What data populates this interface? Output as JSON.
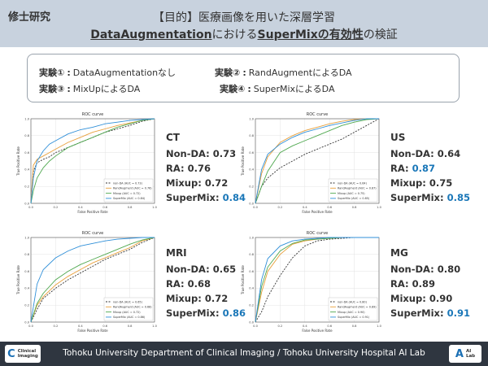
{
  "header": {
    "section_tag": "修士研究",
    "title_line1": "【目的】医療画像を用いた深層学習",
    "title_line2_part1": "DataAugmentation",
    "title_line2_part2": "における",
    "title_line2_part3": "SuperMixの有効性",
    "title_line2_part4": "の検証",
    "bg_color": "#c8d2de"
  },
  "experiments": [
    {
      "num": "実験①",
      "sep": ":",
      "text": "DataAugmentationなし"
    },
    {
      "num": "実験②",
      "sep": ":",
      "text": "RandAugmentによるDA"
    },
    {
      "num": "実験③",
      "sep": ":",
      "text": "MixUpによるDA"
    },
    {
      "num": "実験④",
      "sep": ":",
      "text": "SuperMixによるDA"
    }
  ],
  "results": [
    {
      "modality": "CT",
      "lines": [
        {
          "label": "Non-DA: ",
          "value": "0.73"
        },
        {
          "label": "RA: ",
          "value": "0.76"
        },
        {
          "label": "Mixup: ",
          "value": "0.72"
        },
        {
          "label": "SuperMix: ",
          "value": "0.84"
        }
      ]
    },
    {
      "modality": "US",
      "lines": [
        {
          "label": "Non-DA: ",
          "value": "0.64"
        },
        {
          "label": "RA: ",
          "value": "0.87"
        },
        {
          "label": "Mixup: ",
          "value": "0.75"
        },
        {
          "label": "SuperMix: ",
          "value": "0.85"
        }
      ]
    },
    {
      "modality": "MRI",
      "lines": [
        {
          "label": "Non-DA: ",
          "value": "0.65"
        },
        {
          "label": "RA: ",
          "value": "0.68"
        },
        {
          "label": "Mixup: ",
          "value": "0.72"
        },
        {
          "label": "SuperMix: ",
          "value": "0.86"
        }
      ]
    },
    {
      "modality": "MG",
      "lines": [
        {
          "label": "Non-DA: ",
          "value": "0.80"
        },
        {
          "label": "RA: ",
          "value": "0.89"
        },
        {
          "label": "Mixup: ",
          "value": "0.90"
        },
        {
          "label": "SuperMix: ",
          "value": "0.91"
        }
      ]
    }
  ],
  "highlight_color": "#1a77b8",
  "chart_data": [
    {
      "type": "line",
      "title": "ROC curve",
      "xlabel": "False Positive Rate",
      "ylabel": "True Positive Rate",
      "xlim": [
        0,
        1
      ],
      "ylim": [
        0,
        1
      ],
      "x_ticks": [
        "0.0",
        "0.2",
        "0.4",
        "0.6",
        "0.8",
        "1.0"
      ],
      "y_ticks": [
        "0.0",
        "0.2",
        "0.4",
        "0.6",
        "0.8",
        "1.0"
      ],
      "legend_position": "lower-right",
      "series": [
        {
          "name": "non-DA (AUC = 0.73)",
          "color": "#333333",
          "dash": true,
          "x": [
            0,
            0.02,
            0.05,
            0.1,
            0.15,
            0.2,
            0.3,
            0.4,
            0.5,
            0.6,
            0.7,
            0.8,
            0.9,
            1.0
          ],
          "y": [
            0,
            0.38,
            0.48,
            0.52,
            0.55,
            0.6,
            0.66,
            0.72,
            0.78,
            0.84,
            0.88,
            0.92,
            0.97,
            1.0
          ]
        },
        {
          "name": "RandAugment (AUC = 0.76)",
          "color": "#e8a03c",
          "x": [
            0,
            0.02,
            0.05,
            0.1,
            0.15,
            0.2,
            0.3,
            0.4,
            0.5,
            0.6,
            0.7,
            0.8,
            0.9,
            1.0
          ],
          "y": [
            0,
            0.45,
            0.52,
            0.56,
            0.6,
            0.64,
            0.72,
            0.78,
            0.84,
            0.88,
            0.92,
            0.95,
            0.98,
            1.0
          ]
        },
        {
          "name": "Mixup (AUC = 0.72)",
          "color": "#4fa84f",
          "x": [
            0,
            0.02,
            0.05,
            0.1,
            0.15,
            0.2,
            0.3,
            0.4,
            0.5,
            0.6,
            0.7,
            0.8,
            0.9,
            1.0
          ],
          "y": [
            0,
            0.15,
            0.3,
            0.42,
            0.5,
            0.56,
            0.66,
            0.72,
            0.78,
            0.84,
            0.9,
            0.94,
            0.98,
            1.0
          ]
        },
        {
          "name": "SuperMix (AUC = 0.84)",
          "color": "#2f8fd8",
          "x": [
            0,
            0.02,
            0.05,
            0.1,
            0.15,
            0.2,
            0.3,
            0.4,
            0.5,
            0.6,
            0.7,
            0.8,
            0.9,
            1.0
          ],
          "y": [
            0,
            0.3,
            0.5,
            0.62,
            0.7,
            0.74,
            0.82,
            0.87,
            0.9,
            0.94,
            0.96,
            0.98,
            0.99,
            1.0
          ]
        }
      ]
    },
    {
      "type": "line",
      "title": "ROC curve",
      "xlabel": "False Positive Rate",
      "ylabel": "True Positive Rate",
      "xlim": [
        0,
        1
      ],
      "ylim": [
        0,
        1
      ],
      "x_ticks": [
        "0.0",
        "0.2",
        "0.4",
        "0.6",
        "0.8",
        "1.0"
      ],
      "y_ticks": [
        "0.0",
        "0.2",
        "0.4",
        "0.6",
        "0.8",
        "1.0"
      ],
      "legend_position": "lower-right",
      "series": [
        {
          "name": "non-DA (AUC = 0.64)",
          "color": "#333333",
          "dash": true,
          "x": [
            0,
            0.05,
            0.1,
            0.2,
            0.3,
            0.4,
            0.5,
            0.6,
            0.7,
            0.8,
            0.9,
            1.0
          ],
          "y": [
            0,
            0.2,
            0.3,
            0.42,
            0.5,
            0.58,
            0.64,
            0.7,
            0.76,
            0.84,
            0.92,
            1.0
          ]
        },
        {
          "name": "RandAugment (AUC = 0.87)",
          "color": "#e8a03c",
          "x": [
            0,
            0.05,
            0.1,
            0.2,
            0.3,
            0.4,
            0.5,
            0.6,
            0.7,
            0.8,
            0.9,
            1.0
          ],
          "y": [
            0,
            0.35,
            0.55,
            0.72,
            0.8,
            0.86,
            0.9,
            0.94,
            0.97,
            0.99,
            1.0,
            1.0
          ]
        },
        {
          "name": "Mixup (AUC = 0.75)",
          "color": "#4fa84f",
          "x": [
            0,
            0.05,
            0.1,
            0.2,
            0.3,
            0.4,
            0.5,
            0.6,
            0.7,
            0.8,
            0.9,
            1.0
          ],
          "y": [
            0,
            0.2,
            0.38,
            0.6,
            0.68,
            0.74,
            0.8,
            0.86,
            0.92,
            0.96,
            0.99,
            1.0
          ]
        },
        {
          "name": "SuperMix (AUC = 0.85)",
          "color": "#2f8fd8",
          "x": [
            0,
            0.05,
            0.1,
            0.2,
            0.3,
            0.4,
            0.5,
            0.6,
            0.7,
            0.8,
            0.9,
            1.0
          ],
          "y": [
            0,
            0.4,
            0.58,
            0.7,
            0.78,
            0.84,
            0.88,
            0.92,
            0.95,
            0.98,
            1.0,
            1.0
          ]
        }
      ]
    },
    {
      "type": "line",
      "title": "ROC curve",
      "xlabel": "False Positive Rate",
      "ylabel": "True Positive Rate",
      "xlim": [
        0,
        1
      ],
      "ylim": [
        0,
        1
      ],
      "x_ticks": [
        "0.0",
        "0.2",
        "0.4",
        "0.6",
        "0.8",
        "1.0"
      ],
      "y_ticks": [
        "0.0",
        "0.2",
        "0.4",
        "0.6",
        "0.8",
        "1.0"
      ],
      "legend_position": "lower-right",
      "series": [
        {
          "name": "non-DA (AUC = 0.65)",
          "color": "#333333",
          "dash": true,
          "x": [
            0,
            0.05,
            0.1,
            0.2,
            0.3,
            0.4,
            0.5,
            0.6,
            0.7,
            0.8,
            0.9,
            1.0
          ],
          "y": [
            0,
            0.15,
            0.28,
            0.4,
            0.5,
            0.58,
            0.66,
            0.74,
            0.8,
            0.86,
            0.94,
            1.0
          ]
        },
        {
          "name": "RandAugment (AUC = 0.68)",
          "color": "#e8a03c",
          "x": [
            0,
            0.05,
            0.1,
            0.2,
            0.3,
            0.4,
            0.5,
            0.6,
            0.7,
            0.8,
            0.9,
            1.0
          ],
          "y": [
            0,
            0.2,
            0.3,
            0.44,
            0.54,
            0.62,
            0.7,
            0.76,
            0.82,
            0.88,
            0.96,
            1.0
          ]
        },
        {
          "name": "Mixup (AUC = 0.72)",
          "color": "#4fa84f",
          "x": [
            0,
            0.05,
            0.1,
            0.2,
            0.3,
            0.4,
            0.5,
            0.6,
            0.7,
            0.8,
            0.9,
            1.0
          ],
          "y": [
            0,
            0.22,
            0.34,
            0.5,
            0.6,
            0.68,
            0.74,
            0.8,
            0.86,
            0.92,
            0.97,
            1.0
          ]
        },
        {
          "name": "SuperMix (AUC = 0.86)",
          "color": "#2f8fd8",
          "x": [
            0,
            0.05,
            0.1,
            0.2,
            0.3,
            0.4,
            0.5,
            0.6,
            0.7,
            0.8,
            0.9,
            1.0
          ],
          "y": [
            0,
            0.45,
            0.62,
            0.76,
            0.84,
            0.9,
            0.93,
            0.96,
            0.98,
            0.99,
            1.0,
            1.0
          ]
        }
      ]
    },
    {
      "type": "line",
      "title": "ROC curve",
      "xlabel": "False Positive Rate",
      "ylabel": "True Positive Rate",
      "xlim": [
        0,
        1
      ],
      "ylim": [
        0,
        1
      ],
      "x_ticks": [
        "0.0",
        "0.2",
        "0.4",
        "0.6",
        "0.8",
        "1.0"
      ],
      "y_ticks": [
        "0.0",
        "0.2",
        "0.4",
        "0.6",
        "0.8",
        "1.0"
      ],
      "legend_position": "lower-right",
      "series": [
        {
          "name": "non-DA (AUC = 0.80)",
          "color": "#333333",
          "dash": true,
          "x": [
            0,
            0.05,
            0.1,
            0.2,
            0.3,
            0.4,
            0.5,
            0.6,
            0.7,
            0.8,
            0.9,
            1.0
          ],
          "y": [
            0,
            0.12,
            0.3,
            0.55,
            0.76,
            0.9,
            0.96,
            0.98,
            0.99,
            1.0,
            1.0,
            1.0
          ]
        },
        {
          "name": "RandAugment (AUC = 0.89)",
          "color": "#e8a03c",
          "x": [
            0,
            0.05,
            0.1,
            0.2,
            0.3,
            0.4,
            0.5,
            0.6,
            0.7,
            0.8,
            0.9,
            1.0
          ],
          "y": [
            0,
            0.35,
            0.6,
            0.8,
            0.92,
            0.96,
            0.98,
            0.99,
            1.0,
            1.0,
            1.0,
            1.0
          ]
        },
        {
          "name": "Mixup (AUC = 0.90)",
          "color": "#4fa84f",
          "x": [
            0,
            0.05,
            0.1,
            0.2,
            0.3,
            0.4,
            0.5,
            0.6,
            0.7,
            0.8,
            0.9,
            1.0
          ],
          "y": [
            0,
            0.42,
            0.65,
            0.84,
            0.93,
            0.97,
            0.98,
            0.99,
            1.0,
            1.0,
            1.0,
            1.0
          ]
        },
        {
          "name": "SuperMix (AUC = 0.91)",
          "color": "#2f8fd8",
          "x": [
            0,
            0.05,
            0.1,
            0.2,
            0.3,
            0.4,
            0.5,
            0.6,
            0.7,
            0.8,
            0.9,
            1.0
          ],
          "y": [
            0,
            0.5,
            0.75,
            0.9,
            0.96,
            0.98,
            0.99,
            1.0,
            1.0,
            1.0,
            1.0,
            1.0
          ]
        }
      ]
    }
  ],
  "footer": {
    "text": "Tohoku University Department of Clinical Imaging / Tohoku University Hospital AI Lab",
    "logo_left_glyph": "C",
    "logo_left_text_1": "Clinical",
    "logo_left_text_2": "Imaging",
    "logo_right_glyph": "A",
    "logo_right_text_1": "AI",
    "logo_right_text_2": "Lab",
    "bg_color": "#2f3640"
  }
}
